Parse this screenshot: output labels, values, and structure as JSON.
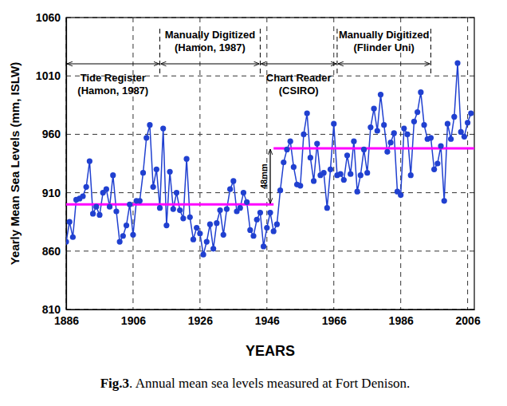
{
  "chart_data": {
    "type": "line",
    "x_label": "YEARS",
    "y_label": "Yearly Mean Sea Levels (mm, ISLW)",
    "caption": [
      "Fig.3",
      ". Annual mean sea levels measured at Fort Denison."
    ],
    "x": [
      1886,
      1887,
      1888,
      1889,
      1890,
      1891,
      1892,
      1893,
      1894,
      1895,
      1896,
      1897,
      1898,
      1899,
      1900,
      1901,
      1902,
      1903,
      1904,
      1905,
      1906,
      1907,
      1908,
      1909,
      1910,
      1911,
      1912,
      1913,
      1914,
      1915,
      1916,
      1917,
      1918,
      1919,
      1920,
      1921,
      1922,
      1923,
      1924,
      1925,
      1926,
      1927,
      1928,
      1929,
      1930,
      1931,
      1932,
      1933,
      1934,
      1935,
      1936,
      1937,
      1938,
      1939,
      1940,
      1941,
      1942,
      1943,
      1944,
      1945,
      1946,
      1947,
      1948,
      1949,
      1950,
      1951,
      1952,
      1953,
      1954,
      1955,
      1956,
      1957,
      1958,
      1959,
      1960,
      1961,
      1962,
      1963,
      1964,
      1965,
      1966,
      1967,
      1968,
      1969,
      1970,
      1971,
      1972,
      1973,
      1974,
      1975,
      1976,
      1977,
      1978,
      1979,
      1980,
      1981,
      1982,
      1983,
      1984,
      1985,
      1986,
      1987,
      1988,
      1989,
      1990,
      1991,
      1992,
      1993,
      1994,
      1995,
      1996,
      1997,
      1998,
      1999,
      2000,
      2001,
      2002,
      2003,
      2004,
      2005,
      2006,
      2007
    ],
    "values": [
      868,
      885,
      872,
      904,
      905,
      907,
      915,
      937,
      892,
      898,
      891,
      910,
      913,
      898,
      925,
      894,
      868,
      873,
      882,
      900,
      874,
      903,
      903,
      927,
      957,
      968,
      915,
      930,
      897,
      965,
      882,
      928,
      896,
      910,
      895,
      888,
      939,
      889,
      870,
      880,
      875,
      857,
      868,
      883,
      862,
      884,
      895,
      874,
      896,
      913,
      920,
      894,
      897,
      910,
      902,
      878,
      873,
      887,
      893,
      864,
      880,
      893,
      877,
      883,
      912,
      936,
      947,
      954,
      932,
      917,
      916,
      960,
      978,
      940,
      920,
      952,
      925,
      927,
      897,
      930,
      969,
      925,
      926,
      921,
      942,
      926,
      954,
      911,
      925,
      947,
      927,
      966,
      982,
      963,
      994,
      968,
      945,
      953,
      961,
      911,
      908,
      965,
      960,
      925,
      971,
      979,
      996,
      968,
      956,
      957,
      930,
      935,
      950,
      903,
      969,
      956,
      975,
      1021,
      962,
      958,
      970,
      978
    ],
    "color": "#2040d0",
    "marker": "circle",
    "line_style": "solid",
    "xlim": [
      1886,
      2008
    ],
    "xticks": [
      1886,
      1906,
      1926,
      1946,
      1966,
      1986,
      2006
    ],
    "ylim": [
      810,
      1060
    ],
    "yticks": [
      810,
      860,
      910,
      960,
      1010,
      1060
    ],
    "grid": true,
    "means": [
      {
        "value": 900,
        "start": 1886,
        "end": 1948,
        "color": "#ff00ff"
      },
      {
        "value": 948,
        "start": 1948,
        "end": 2008,
        "color": "#ff00ff"
      }
    ],
    "step": {
      "label": "48mm",
      "x": 1947
    },
    "periods": [
      {
        "label": [
          "Tide Register",
          "(Hamon, 1987)"
        ],
        "start": 1886,
        "end": 1914
      },
      {
        "label": [
          "Manually Digitized",
          "(Hamon, 1987)"
        ],
        "start": 1914,
        "end": 1944
      },
      {
        "label": [
          "Chart Reader",
          "(CSIRO)"
        ],
        "start": 1944,
        "end": 1967
      },
      {
        "label": [
          "Manually Digitized",
          "(Flinder Uni)"
        ],
        "start": 1967,
        "end": 1995
      }
    ]
  }
}
